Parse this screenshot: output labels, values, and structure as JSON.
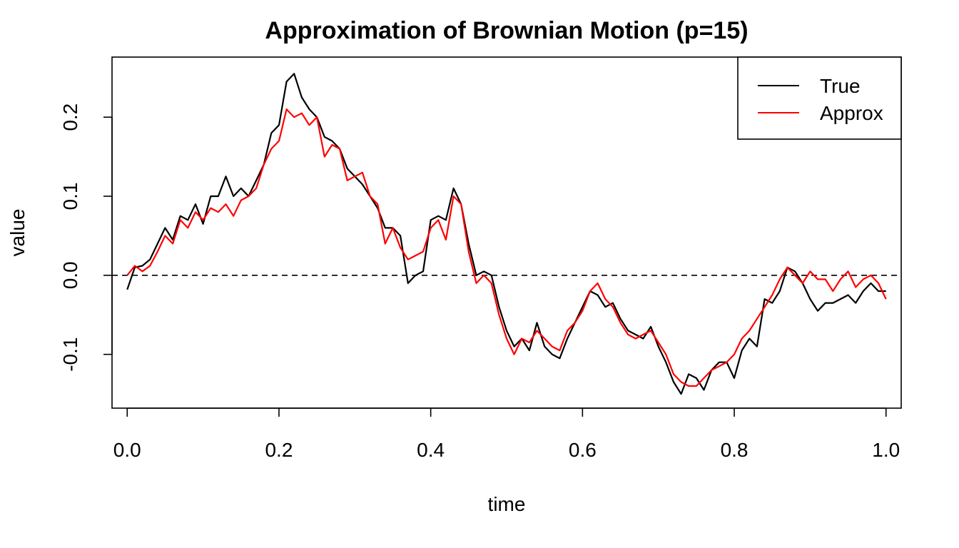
{
  "chart_data": {
    "type": "line",
    "title": "Approximation of Brownian Motion (p=15)",
    "xlabel": "time",
    "ylabel": "value",
    "xlim": [
      -0.02,
      1.02
    ],
    "ylim": [
      -0.168,
      0.276
    ],
    "xticks": [
      0.0,
      0.2,
      0.4,
      0.6,
      0.8,
      1.0
    ],
    "xtick_labels": [
      "0.0",
      "0.2",
      "0.4",
      "0.6",
      "0.8",
      "1.0"
    ],
    "yticks": [
      -0.1,
      0.0,
      0.1,
      0.2
    ],
    "ytick_labels": [
      "-0.1",
      "0.0",
      "0.1",
      "0.2"
    ],
    "grid": false,
    "legend_position": "top-right",
    "reference_line": {
      "y": 0.0,
      "style": "dashed",
      "color": "#000000"
    },
    "series": [
      {
        "name": "True",
        "color": "#000000",
        "x": [
          0.0,
          0.01,
          0.02,
          0.03,
          0.04,
          0.05,
          0.06,
          0.07,
          0.08,
          0.09,
          0.1,
          0.11,
          0.12,
          0.13,
          0.14,
          0.15,
          0.16,
          0.17,
          0.18,
          0.19,
          0.2,
          0.21,
          0.22,
          0.23,
          0.24,
          0.25,
          0.26,
          0.27,
          0.28,
          0.29,
          0.3,
          0.31,
          0.32,
          0.33,
          0.34,
          0.35,
          0.36,
          0.37,
          0.38,
          0.39,
          0.4,
          0.41,
          0.42,
          0.43,
          0.44,
          0.45,
          0.46,
          0.47,
          0.48,
          0.49,
          0.5,
          0.51,
          0.52,
          0.53,
          0.54,
          0.55,
          0.56,
          0.57,
          0.58,
          0.59,
          0.6,
          0.61,
          0.62,
          0.63,
          0.64,
          0.65,
          0.66,
          0.67,
          0.68,
          0.69,
          0.7,
          0.71,
          0.72,
          0.73,
          0.74,
          0.75,
          0.76,
          0.77,
          0.78,
          0.79,
          0.8,
          0.81,
          0.82,
          0.83,
          0.84,
          0.85,
          0.86,
          0.87,
          0.88,
          0.89,
          0.9,
          0.91,
          0.92,
          0.93,
          0.94,
          0.95,
          0.96,
          0.97,
          0.98,
          0.99,
          1.0
        ],
        "y": [
          -0.018,
          0.01,
          0.012,
          0.02,
          0.04,
          0.06,
          0.045,
          0.075,
          0.07,
          0.09,
          0.065,
          0.1,
          0.1,
          0.125,
          0.1,
          0.11,
          0.1,
          0.12,
          0.14,
          0.18,
          0.19,
          0.245,
          0.255,
          0.225,
          0.21,
          0.2,
          0.175,
          0.17,
          0.16,
          0.135,
          0.125,
          0.115,
          0.1,
          0.085,
          0.06,
          0.06,
          0.05,
          -0.01,
          0.0,
          0.005,
          0.07,
          0.075,
          0.07,
          0.11,
          0.09,
          0.04,
          0.0,
          0.005,
          0.0,
          -0.04,
          -0.07,
          -0.09,
          -0.08,
          -0.095,
          -0.06,
          -0.09,
          -0.1,
          -0.105,
          -0.08,
          -0.06,
          -0.04,
          -0.02,
          -0.025,
          -0.04,
          -0.035,
          -0.055,
          -0.07,
          -0.075,
          -0.08,
          -0.065,
          -0.09,
          -0.11,
          -0.135,
          -0.15,
          -0.125,
          -0.13,
          -0.145,
          -0.12,
          -0.11,
          -0.11,
          -0.13,
          -0.095,
          -0.08,
          -0.09,
          -0.03,
          -0.035,
          -0.02,
          0.01,
          0.005,
          -0.01,
          -0.03,
          -0.045,
          -0.035,
          -0.035,
          -0.03,
          -0.025,
          -0.035,
          -0.02,
          -0.01,
          -0.02,
          -0.02
        ]
      },
      {
        "name": "Approx",
        "color": "#ff0000",
        "x": [
          0.0,
          0.01,
          0.02,
          0.03,
          0.04,
          0.05,
          0.06,
          0.07,
          0.08,
          0.09,
          0.1,
          0.11,
          0.12,
          0.13,
          0.14,
          0.15,
          0.16,
          0.17,
          0.18,
          0.19,
          0.2,
          0.21,
          0.22,
          0.23,
          0.24,
          0.25,
          0.26,
          0.27,
          0.28,
          0.29,
          0.3,
          0.31,
          0.32,
          0.33,
          0.34,
          0.35,
          0.36,
          0.37,
          0.38,
          0.39,
          0.4,
          0.41,
          0.42,
          0.43,
          0.44,
          0.45,
          0.46,
          0.47,
          0.48,
          0.49,
          0.5,
          0.51,
          0.52,
          0.53,
          0.54,
          0.55,
          0.56,
          0.57,
          0.58,
          0.59,
          0.6,
          0.61,
          0.62,
          0.63,
          0.64,
          0.65,
          0.66,
          0.67,
          0.68,
          0.69,
          0.7,
          0.71,
          0.72,
          0.73,
          0.74,
          0.75,
          0.76,
          0.77,
          0.78,
          0.79,
          0.8,
          0.81,
          0.82,
          0.83,
          0.84,
          0.85,
          0.86,
          0.87,
          0.88,
          0.89,
          0.9,
          0.91,
          0.92,
          0.93,
          0.94,
          0.95,
          0.96,
          0.97,
          0.98,
          0.99,
          1.0
        ],
        "y": [
          0.0,
          0.012,
          0.005,
          0.012,
          0.03,
          0.05,
          0.04,
          0.07,
          0.06,
          0.08,
          0.07,
          0.085,
          0.08,
          0.09,
          0.075,
          0.095,
          0.1,
          0.11,
          0.14,
          0.16,
          0.17,
          0.21,
          0.2,
          0.205,
          0.19,
          0.2,
          0.15,
          0.165,
          0.16,
          0.12,
          0.125,
          0.13,
          0.1,
          0.09,
          0.04,
          0.06,
          0.035,
          0.02,
          0.025,
          0.03,
          0.06,
          0.07,
          0.045,
          0.1,
          0.09,
          0.03,
          -0.01,
          0.0,
          -0.01,
          -0.05,
          -0.08,
          -0.1,
          -0.08,
          -0.085,
          -0.07,
          -0.08,
          -0.09,
          -0.095,
          -0.07,
          -0.06,
          -0.045,
          -0.02,
          -0.01,
          -0.03,
          -0.04,
          -0.06,
          -0.075,
          -0.08,
          -0.075,
          -0.07,
          -0.085,
          -0.1,
          -0.125,
          -0.135,
          -0.14,
          -0.14,
          -0.13,
          -0.12,
          -0.115,
          -0.11,
          -0.1,
          -0.08,
          -0.07,
          -0.055,
          -0.04,
          -0.025,
          -0.005,
          0.01,
          0.0,
          -0.01,
          0.005,
          -0.005,
          -0.005,
          -0.02,
          -0.005,
          0.005,
          -0.015,
          -0.005,
          0.0,
          -0.01,
          -0.03
        ]
      }
    ]
  }
}
